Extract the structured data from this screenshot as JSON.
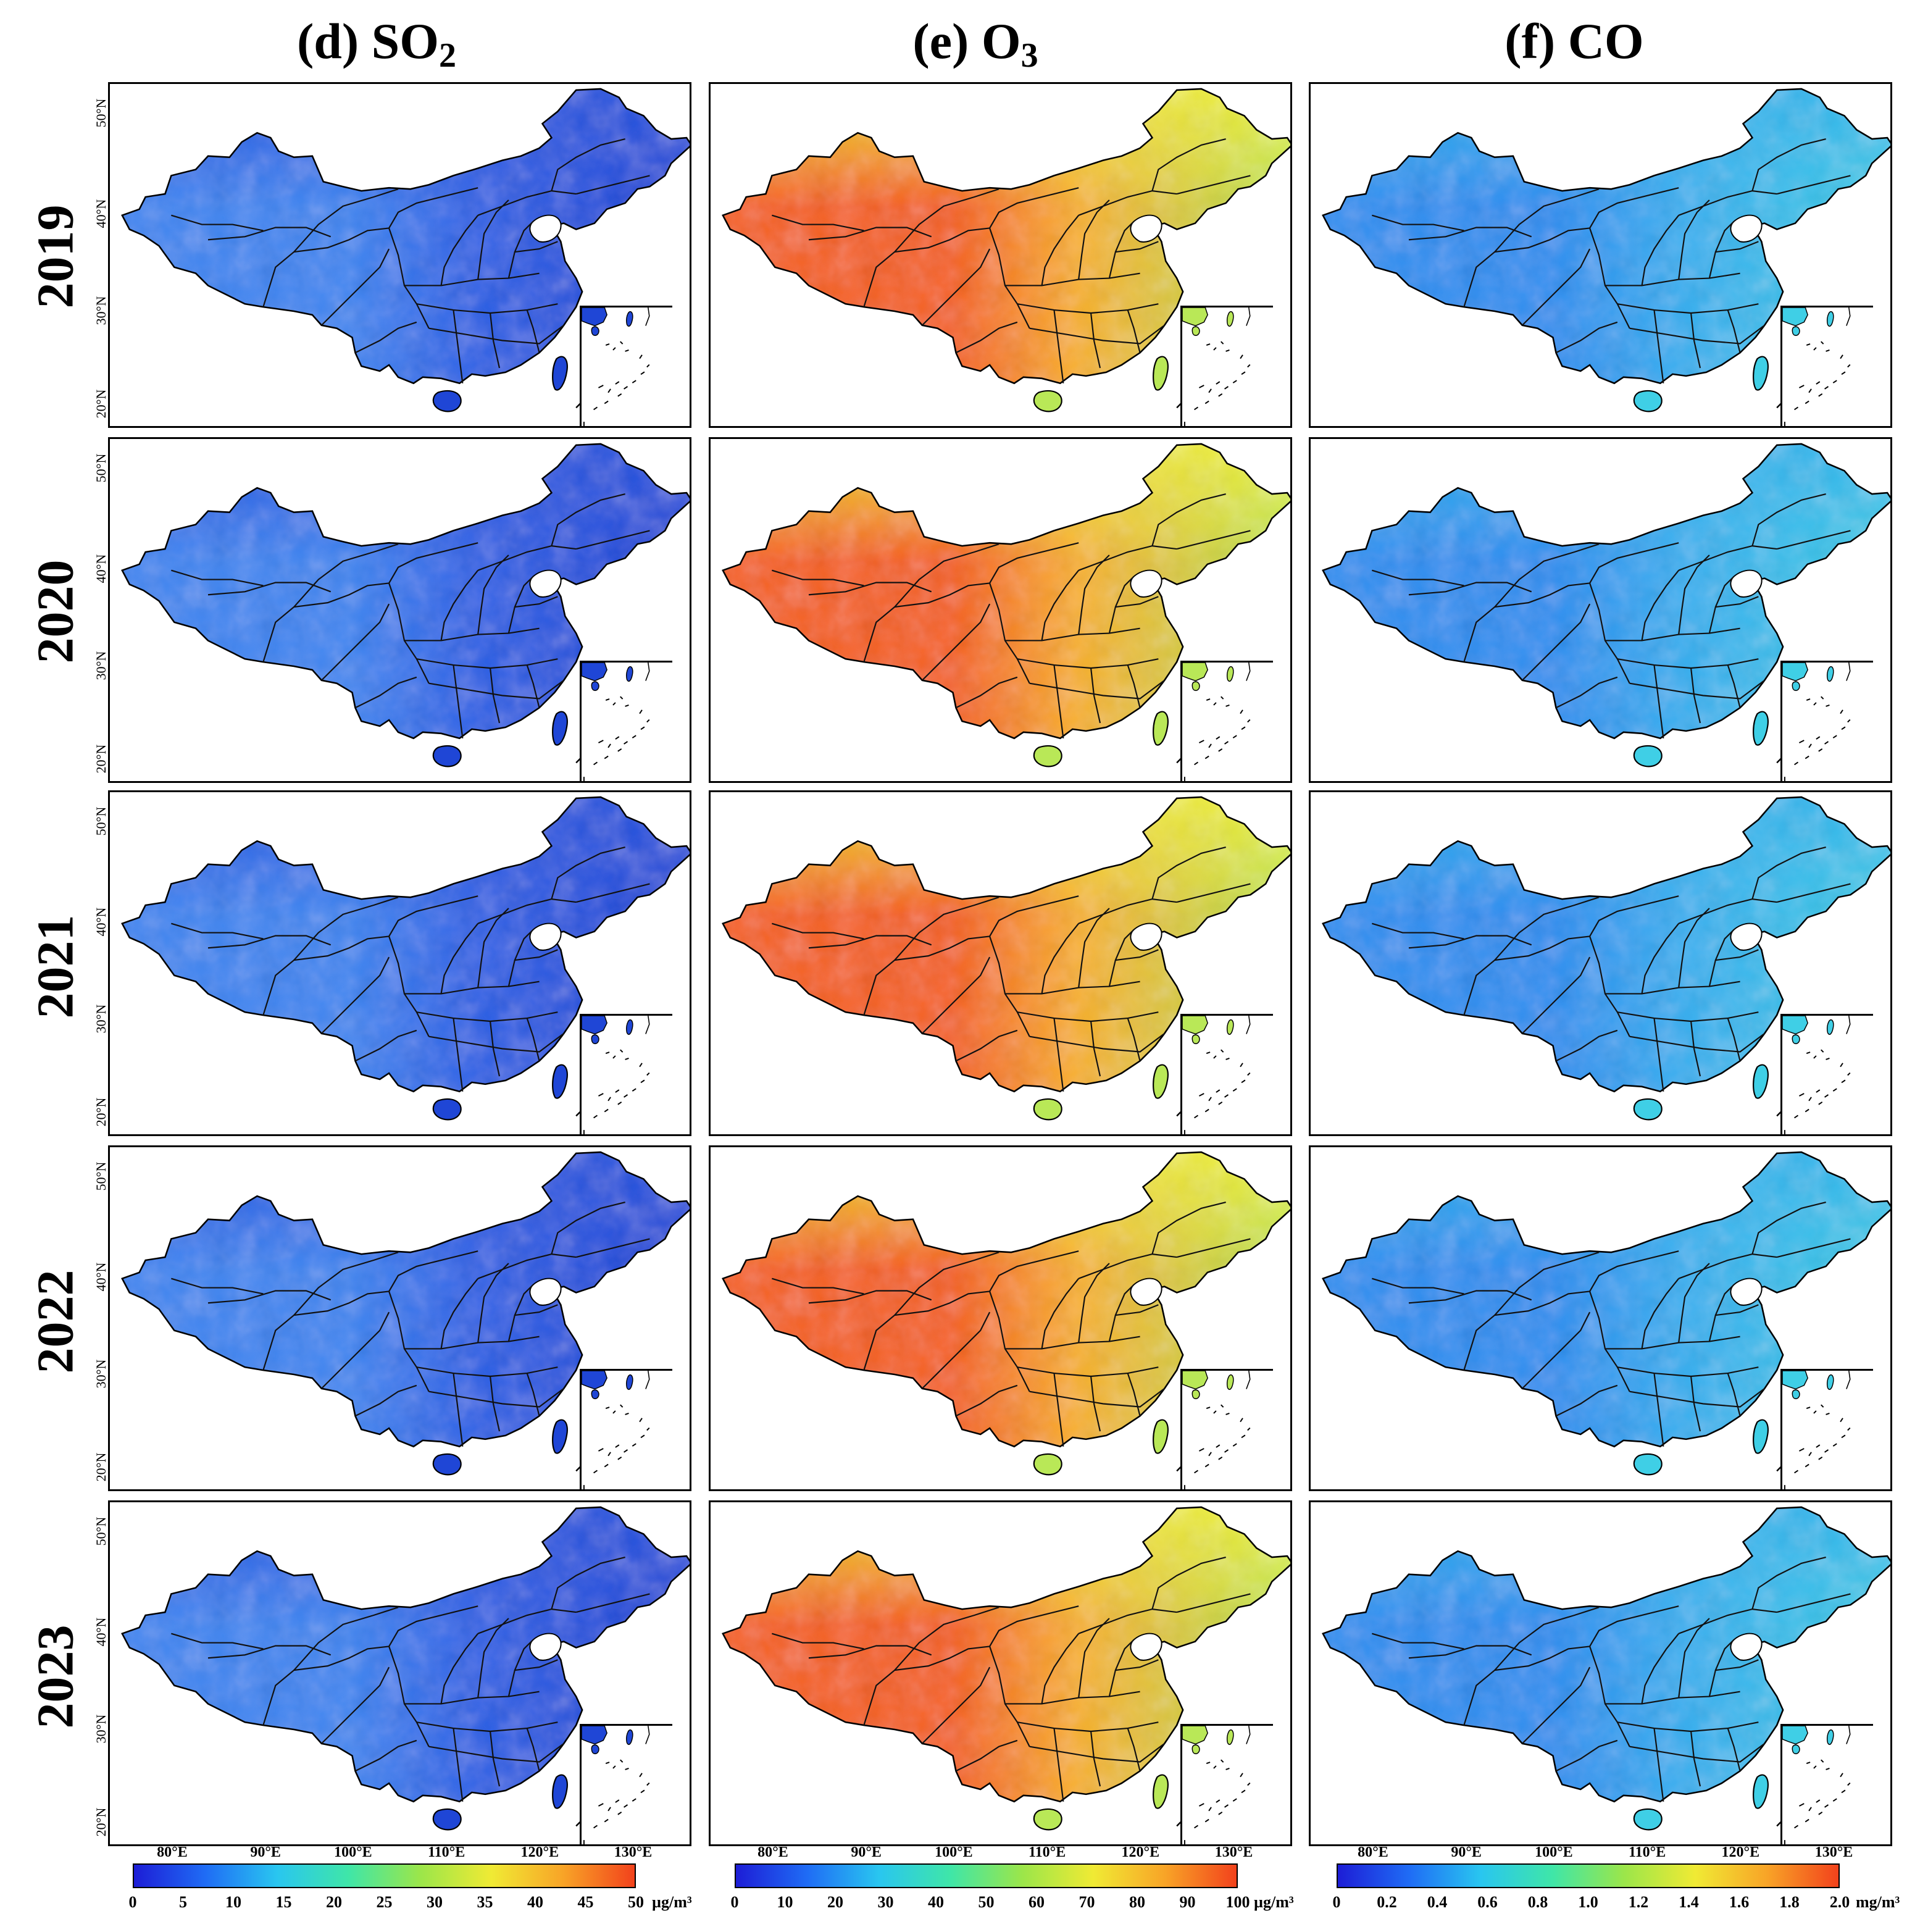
{
  "columns": [
    {
      "key": "so2",
      "label_main": "(d) SO",
      "label_sub": "2",
      "unit": "µg/m³",
      "colorbar_ticks": [
        "0",
        "5",
        "10",
        "15",
        "20",
        "25",
        "30",
        "35",
        "40",
        "45",
        "50"
      ],
      "colorbar_unit": "µg/m³",
      "fill": {
        "west": "#3f86f0",
        "center": "#2c62e6",
        "east": "#1f46d6",
        "north": "#2a58e0"
      }
    },
    {
      "key": "o3",
      "label_main": "(e) O",
      "label_sub": "3",
      "unit": "µg/m³",
      "colorbar_ticks": [
        "0",
        "10",
        "20",
        "30",
        "40",
        "50",
        "60",
        "70",
        "80",
        "90",
        "100"
      ],
      "colorbar_unit": "µg/m³",
      "fill": {
        "west": "#f5621f",
        "center": "#f8b02c",
        "east": "#b9e857",
        "north": "#f1f03c"
      }
    },
    {
      "key": "co",
      "label_main": "(f) CO",
      "label_sub": "",
      "unit": "mg/m³",
      "colorbar_ticks": [
        "0",
        "0.2",
        "0.4",
        "0.6",
        "0.8",
        "1.0",
        "1.2",
        "1.4",
        "1.6",
        "1.8",
        "2.0"
      ],
      "colorbar_unit": "mg/m³",
      "fill": {
        "west": "#2d8ff0",
        "center": "#36aef0",
        "east": "#3fcfe6",
        "north": "#35b6ee"
      }
    }
  ],
  "years": [
    "2019",
    "2020",
    "2021",
    "2022",
    "2023"
  ],
  "latitude_labels": [
    "50°N",
    "40°N",
    "30°N",
    "20°N"
  ],
  "longitude_labels": [
    "80°E",
    "90°E",
    "100°E",
    "110°E",
    "120°E",
    "130°E"
  ],
  "colorbar_colors": [
    "#1d1dd6",
    "#1f6cf5",
    "#29c6f0",
    "#3fe6a8",
    "#9be64a",
    "#f0ea34",
    "#f8a427",
    "#f2421c"
  ]
}
